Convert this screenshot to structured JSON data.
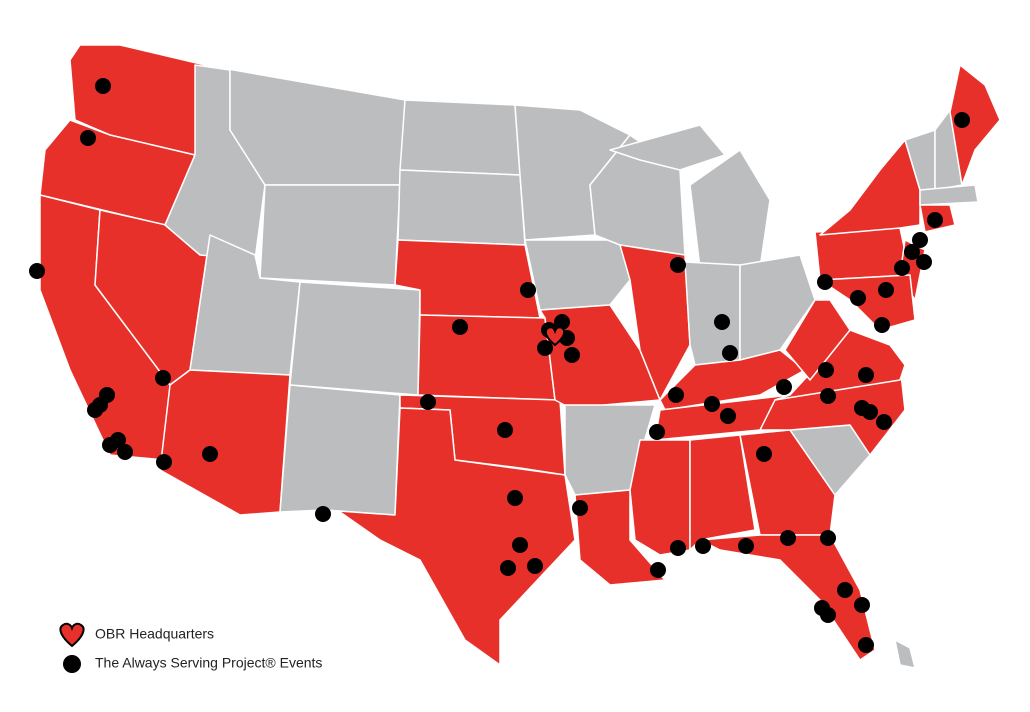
{
  "legend": {
    "items": [
      "OBR Headquarters",
      "The Always Serving Project® Events"
    ]
  }
}
